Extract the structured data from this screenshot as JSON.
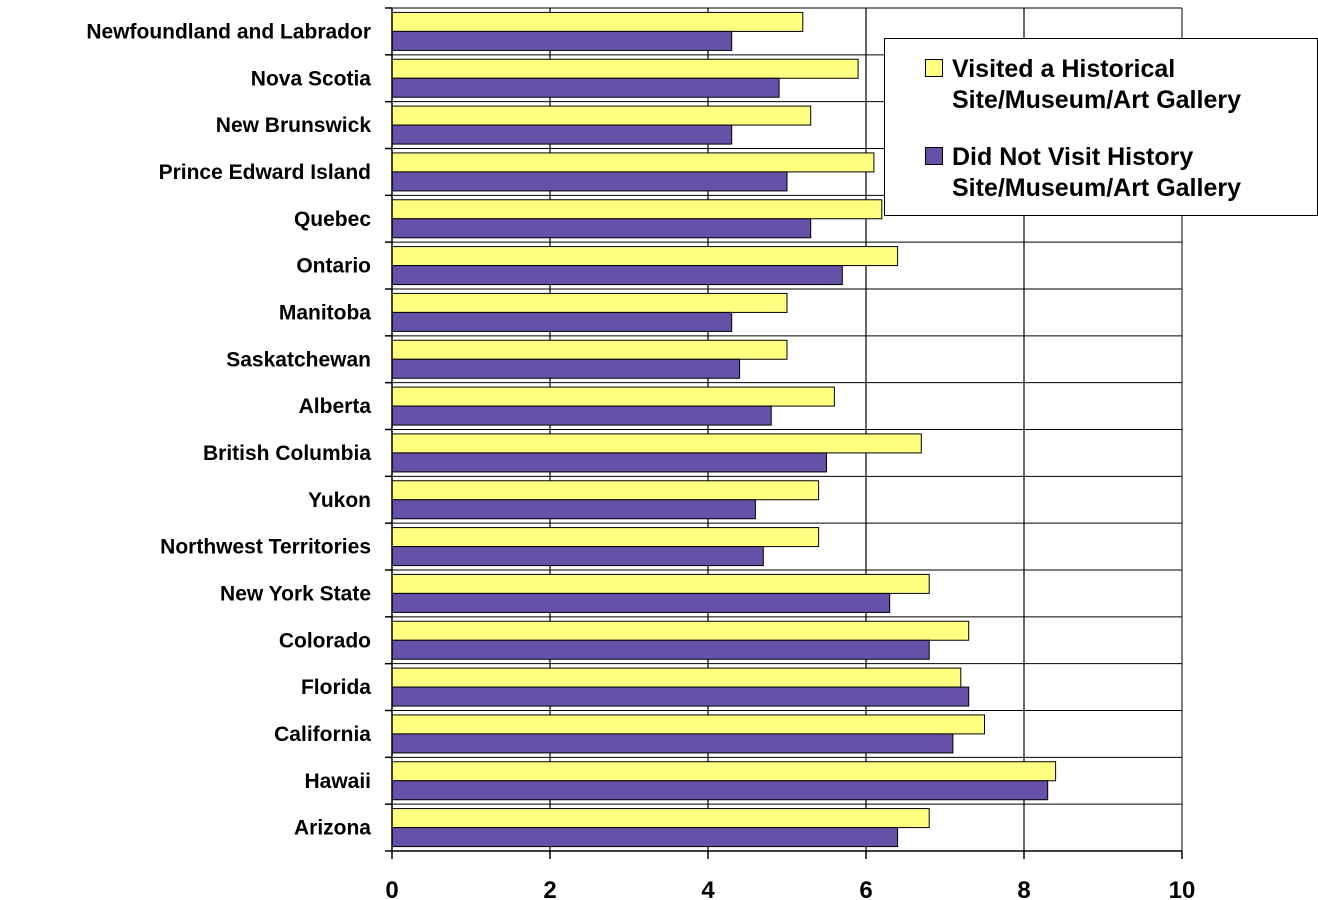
{
  "chart_data": {
    "type": "bar",
    "orientation": "horizontal",
    "categories": [
      "Newfoundland and Labrador",
      "Nova Scotia",
      "New Brunswick",
      "Prince Edward Island",
      "Quebec",
      "Ontario",
      "Manitoba",
      "Saskatchewan",
      "Alberta",
      "British Columbia",
      "Yukon",
      "Northwest Territories",
      "New York State",
      "Colorado",
      "Florida",
      "California",
      "Hawaii",
      "Arizona"
    ],
    "series": [
      {
        "name": "Visited a Historical\nSite/Museum/Art Gallery",
        "color": "#ffff80",
        "values": [
          5.2,
          5.9,
          5.3,
          6.1,
          6.2,
          6.4,
          5.0,
          5.0,
          5.6,
          6.7,
          5.4,
          5.4,
          6.8,
          7.3,
          7.2,
          7.5,
          8.4,
          6.8
        ]
      },
      {
        "name": "Did Not Visit History\nSite/Museum/Art Gallery",
        "color": "#6651a8",
        "values": [
          4.3,
          4.9,
          4.3,
          5.0,
          5.3,
          5.7,
          4.3,
          4.4,
          4.8,
          5.5,
          4.6,
          4.7,
          6.3,
          6.8,
          7.3,
          7.1,
          8.3,
          6.4
        ]
      }
    ],
    "xlim": [
      0,
      10
    ],
    "xticks": [
      "0",
      "2",
      "4",
      "6",
      "8",
      "10"
    ],
    "grid": true,
    "legend_position": "top-right",
    "title": "",
    "xlabel": "",
    "ylabel": ""
  }
}
